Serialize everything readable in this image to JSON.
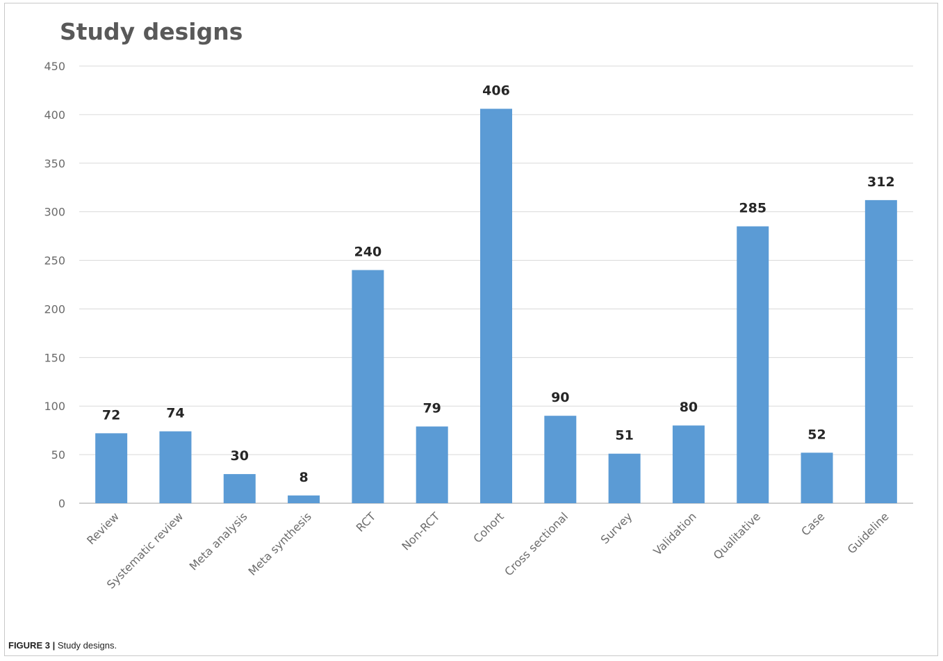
{
  "chart_data": {
    "type": "bar",
    "title": "Study designs",
    "categories": [
      "Review",
      "Systematic review",
      "Meta analysis",
      "Meta synthesis",
      "RCT",
      "Non-RCT",
      "Cohort",
      "Cross sectional",
      "Survey",
      "Validation",
      "Qualitative",
      "Case",
      "Guideline"
    ],
    "values": [
      72,
      74,
      30,
      8,
      240,
      79,
      406,
      90,
      51,
      80,
      285,
      52,
      312
    ],
    "ylim": [
      0,
      450
    ],
    "yticks": [
      0,
      50,
      100,
      150,
      200,
      250,
      300,
      350,
      400,
      450
    ],
    "xlabel": "",
    "ylabel": "",
    "grid": "horizontal",
    "data_labels": true,
    "bar_color": "#5b9bd5",
    "grid_color": "#d9d9d9"
  },
  "caption": {
    "label": "FIGURE 3 |",
    "text": " Study designs."
  }
}
